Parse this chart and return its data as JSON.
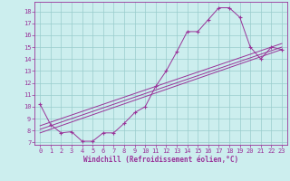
{
  "xlabel": "Windchill (Refroidissement éolien,°C)",
  "background_color": "#cceeee",
  "grid_color": "#99cccc",
  "line_color": "#993399",
  "xlim": [
    -0.5,
    23.5
  ],
  "ylim": [
    6.8,
    18.8
  ],
  "xticks": [
    0,
    1,
    2,
    3,
    4,
    5,
    6,
    7,
    8,
    9,
    10,
    11,
    12,
    13,
    14,
    15,
    16,
    17,
    18,
    19,
    20,
    21,
    22,
    23
  ],
  "yticks": [
    7,
    8,
    9,
    10,
    11,
    12,
    13,
    14,
    15,
    16,
    17,
    18
  ],
  "curve1_x": [
    0,
    1,
    2,
    3,
    4,
    5,
    6,
    7,
    8,
    9,
    10,
    11,
    12,
    13,
    14,
    15,
    16,
    17,
    18,
    19,
    20,
    21,
    22,
    23
  ],
  "curve1_y": [
    10.2,
    8.5,
    7.8,
    7.9,
    7.1,
    7.1,
    7.8,
    7.8,
    8.6,
    9.5,
    10.0,
    11.7,
    13.0,
    14.6,
    16.3,
    16.3,
    17.3,
    18.3,
    18.3,
    17.5,
    15.0,
    14.0,
    15.0,
    14.8
  ],
  "line2_x": [
    0,
    23
  ],
  "line2_y": [
    7.8,
    14.8
  ],
  "line3_x": [
    0,
    23
  ],
  "line3_y": [
    8.1,
    15.0
  ],
  "line4_x": [
    0,
    23
  ],
  "line4_y": [
    8.4,
    15.3
  ],
  "tick_fontsize": 5.0,
  "xlabel_fontsize": 5.5,
  "linewidth": 0.7,
  "marker_size": 2.2
}
